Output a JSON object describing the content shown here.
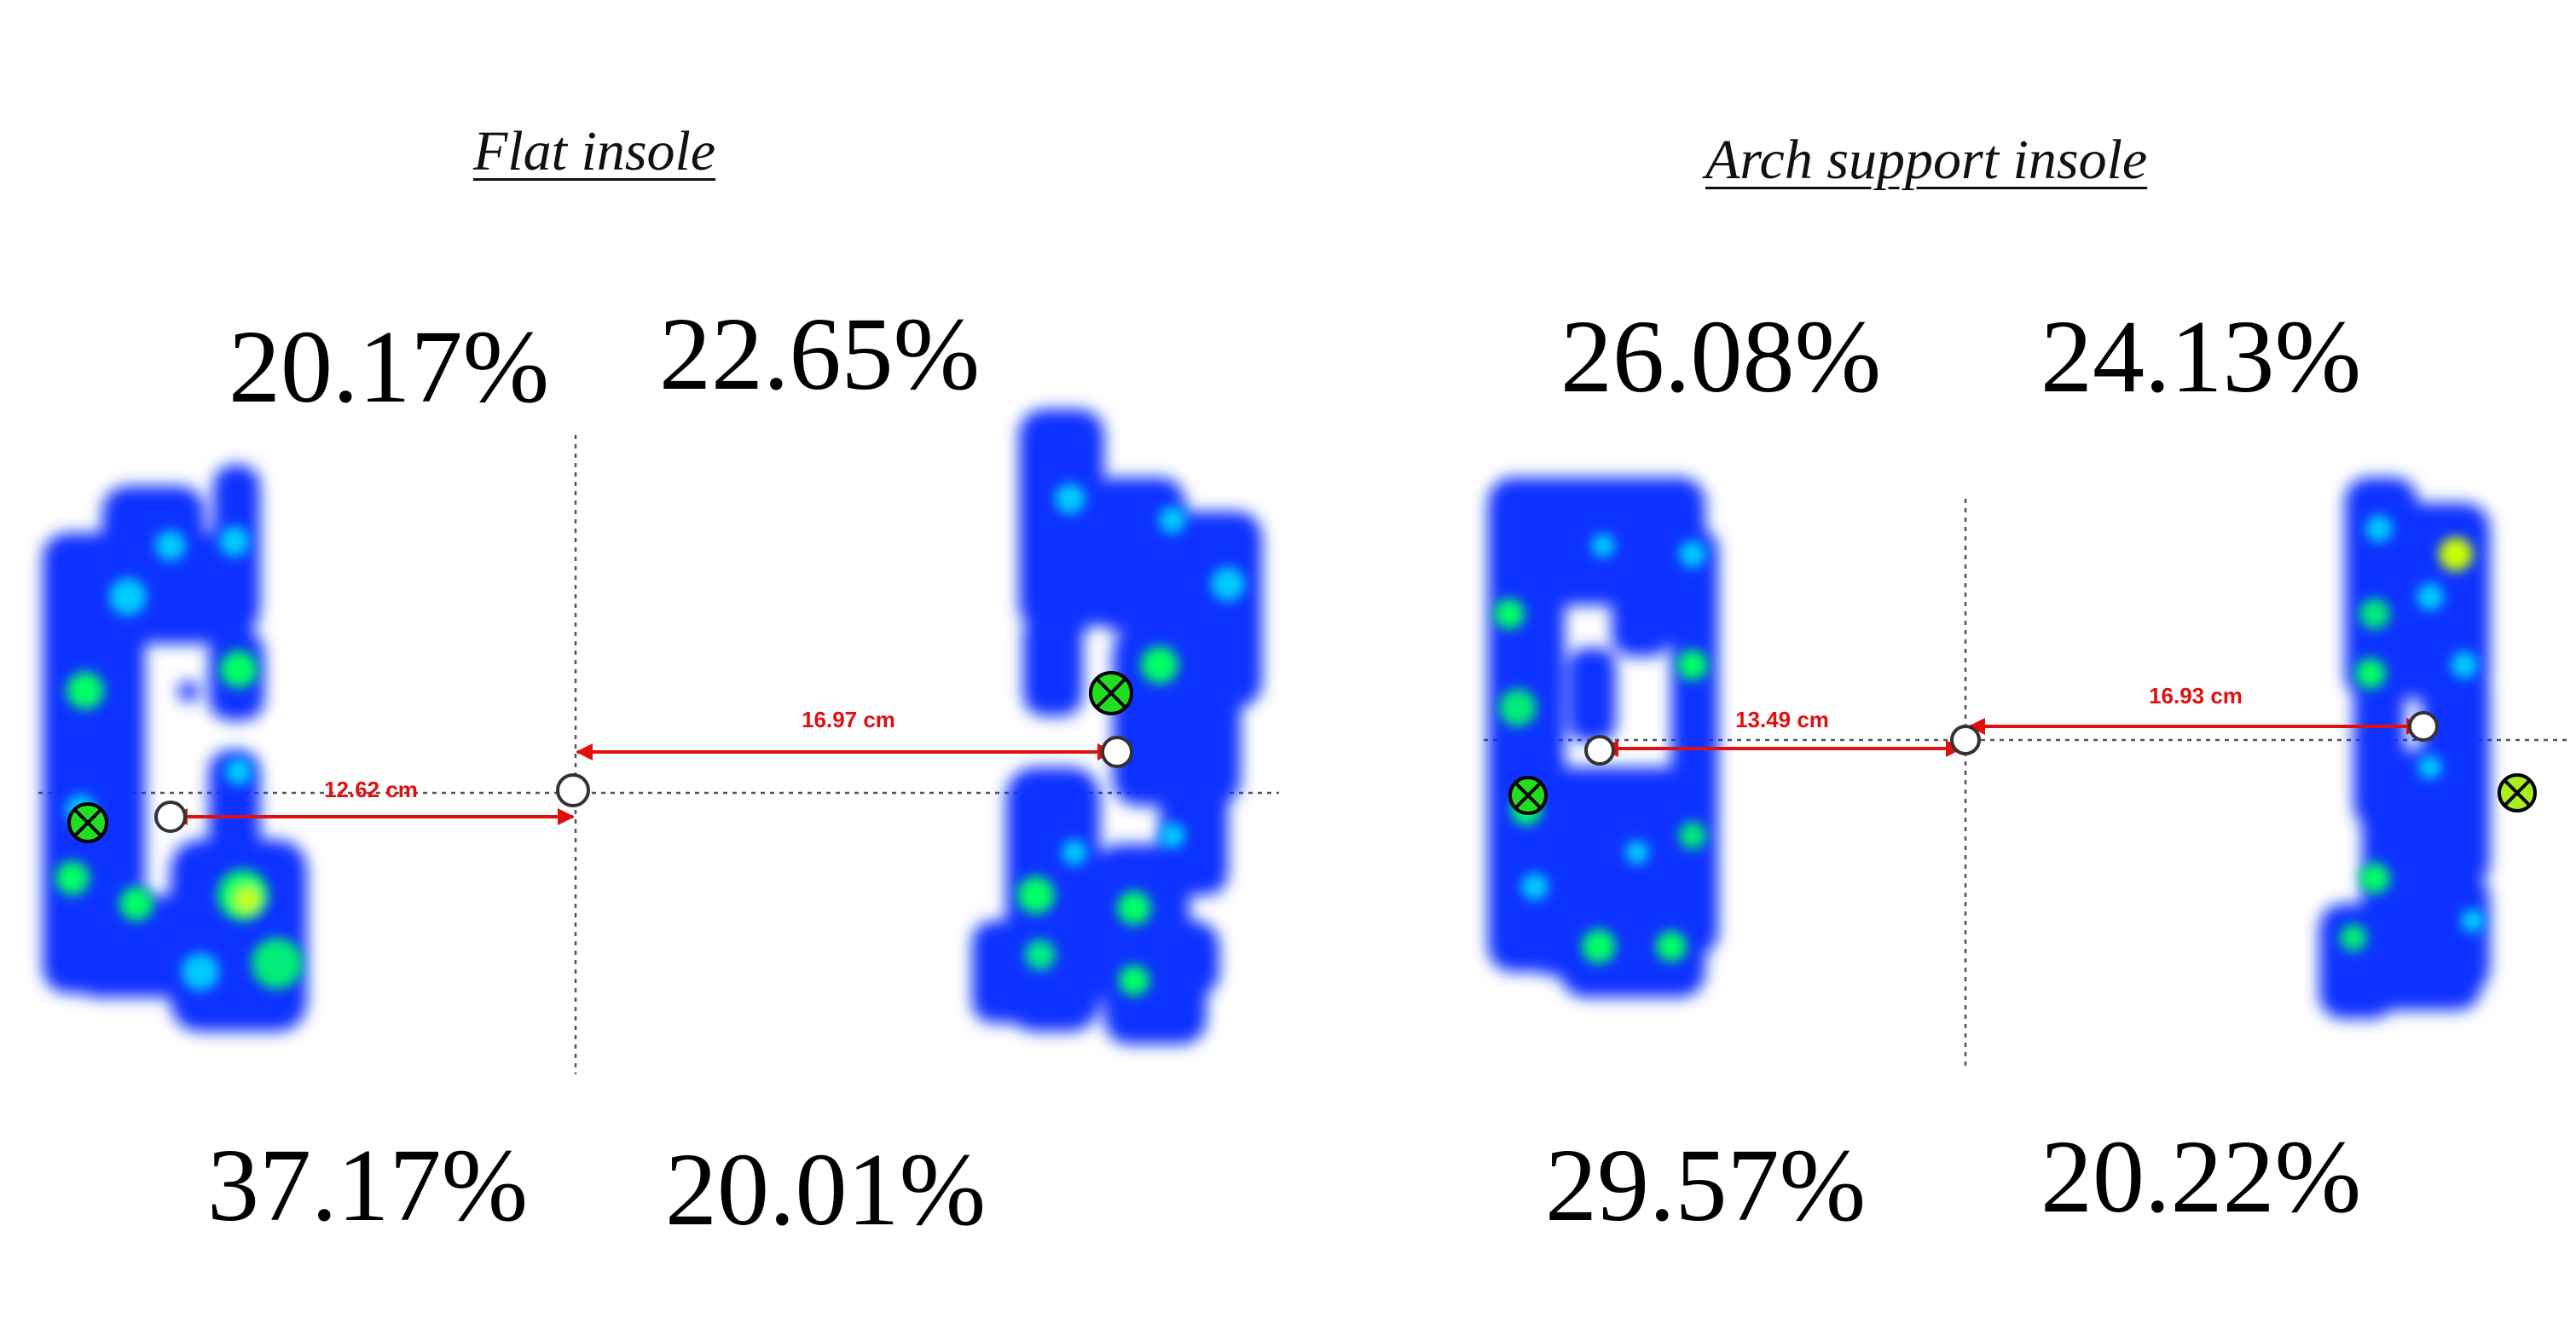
{
  "panels": [
    {
      "id": "flat",
      "title": "Flat insole",
      "quadrants": {
        "top_left": "20.17%",
        "top_right": "22.65%",
        "bottom_left": "37.17%",
        "bottom_right": "20.01%"
      },
      "distances": {
        "left": "12.62 cm",
        "right": "16.97 cm"
      }
    },
    {
      "id": "arch",
      "title": "Arch support insole",
      "quadrants": {
        "top_left": "26.08%",
        "top_right": "24.13%",
        "bottom_left": "29.57%",
        "bottom_right": "20.22%"
      },
      "distances": {
        "left": "13.49 cm",
        "right": "16.93 cm"
      }
    }
  ],
  "colors": {
    "pressure_base": "#1133ff",
    "pressure_mid": "#00ccff",
    "pressure_high": "#00ff66",
    "pressure_peak": "#ccff00",
    "measure_line": "#e01010",
    "cop_marker_fill": "#22dd22"
  }
}
